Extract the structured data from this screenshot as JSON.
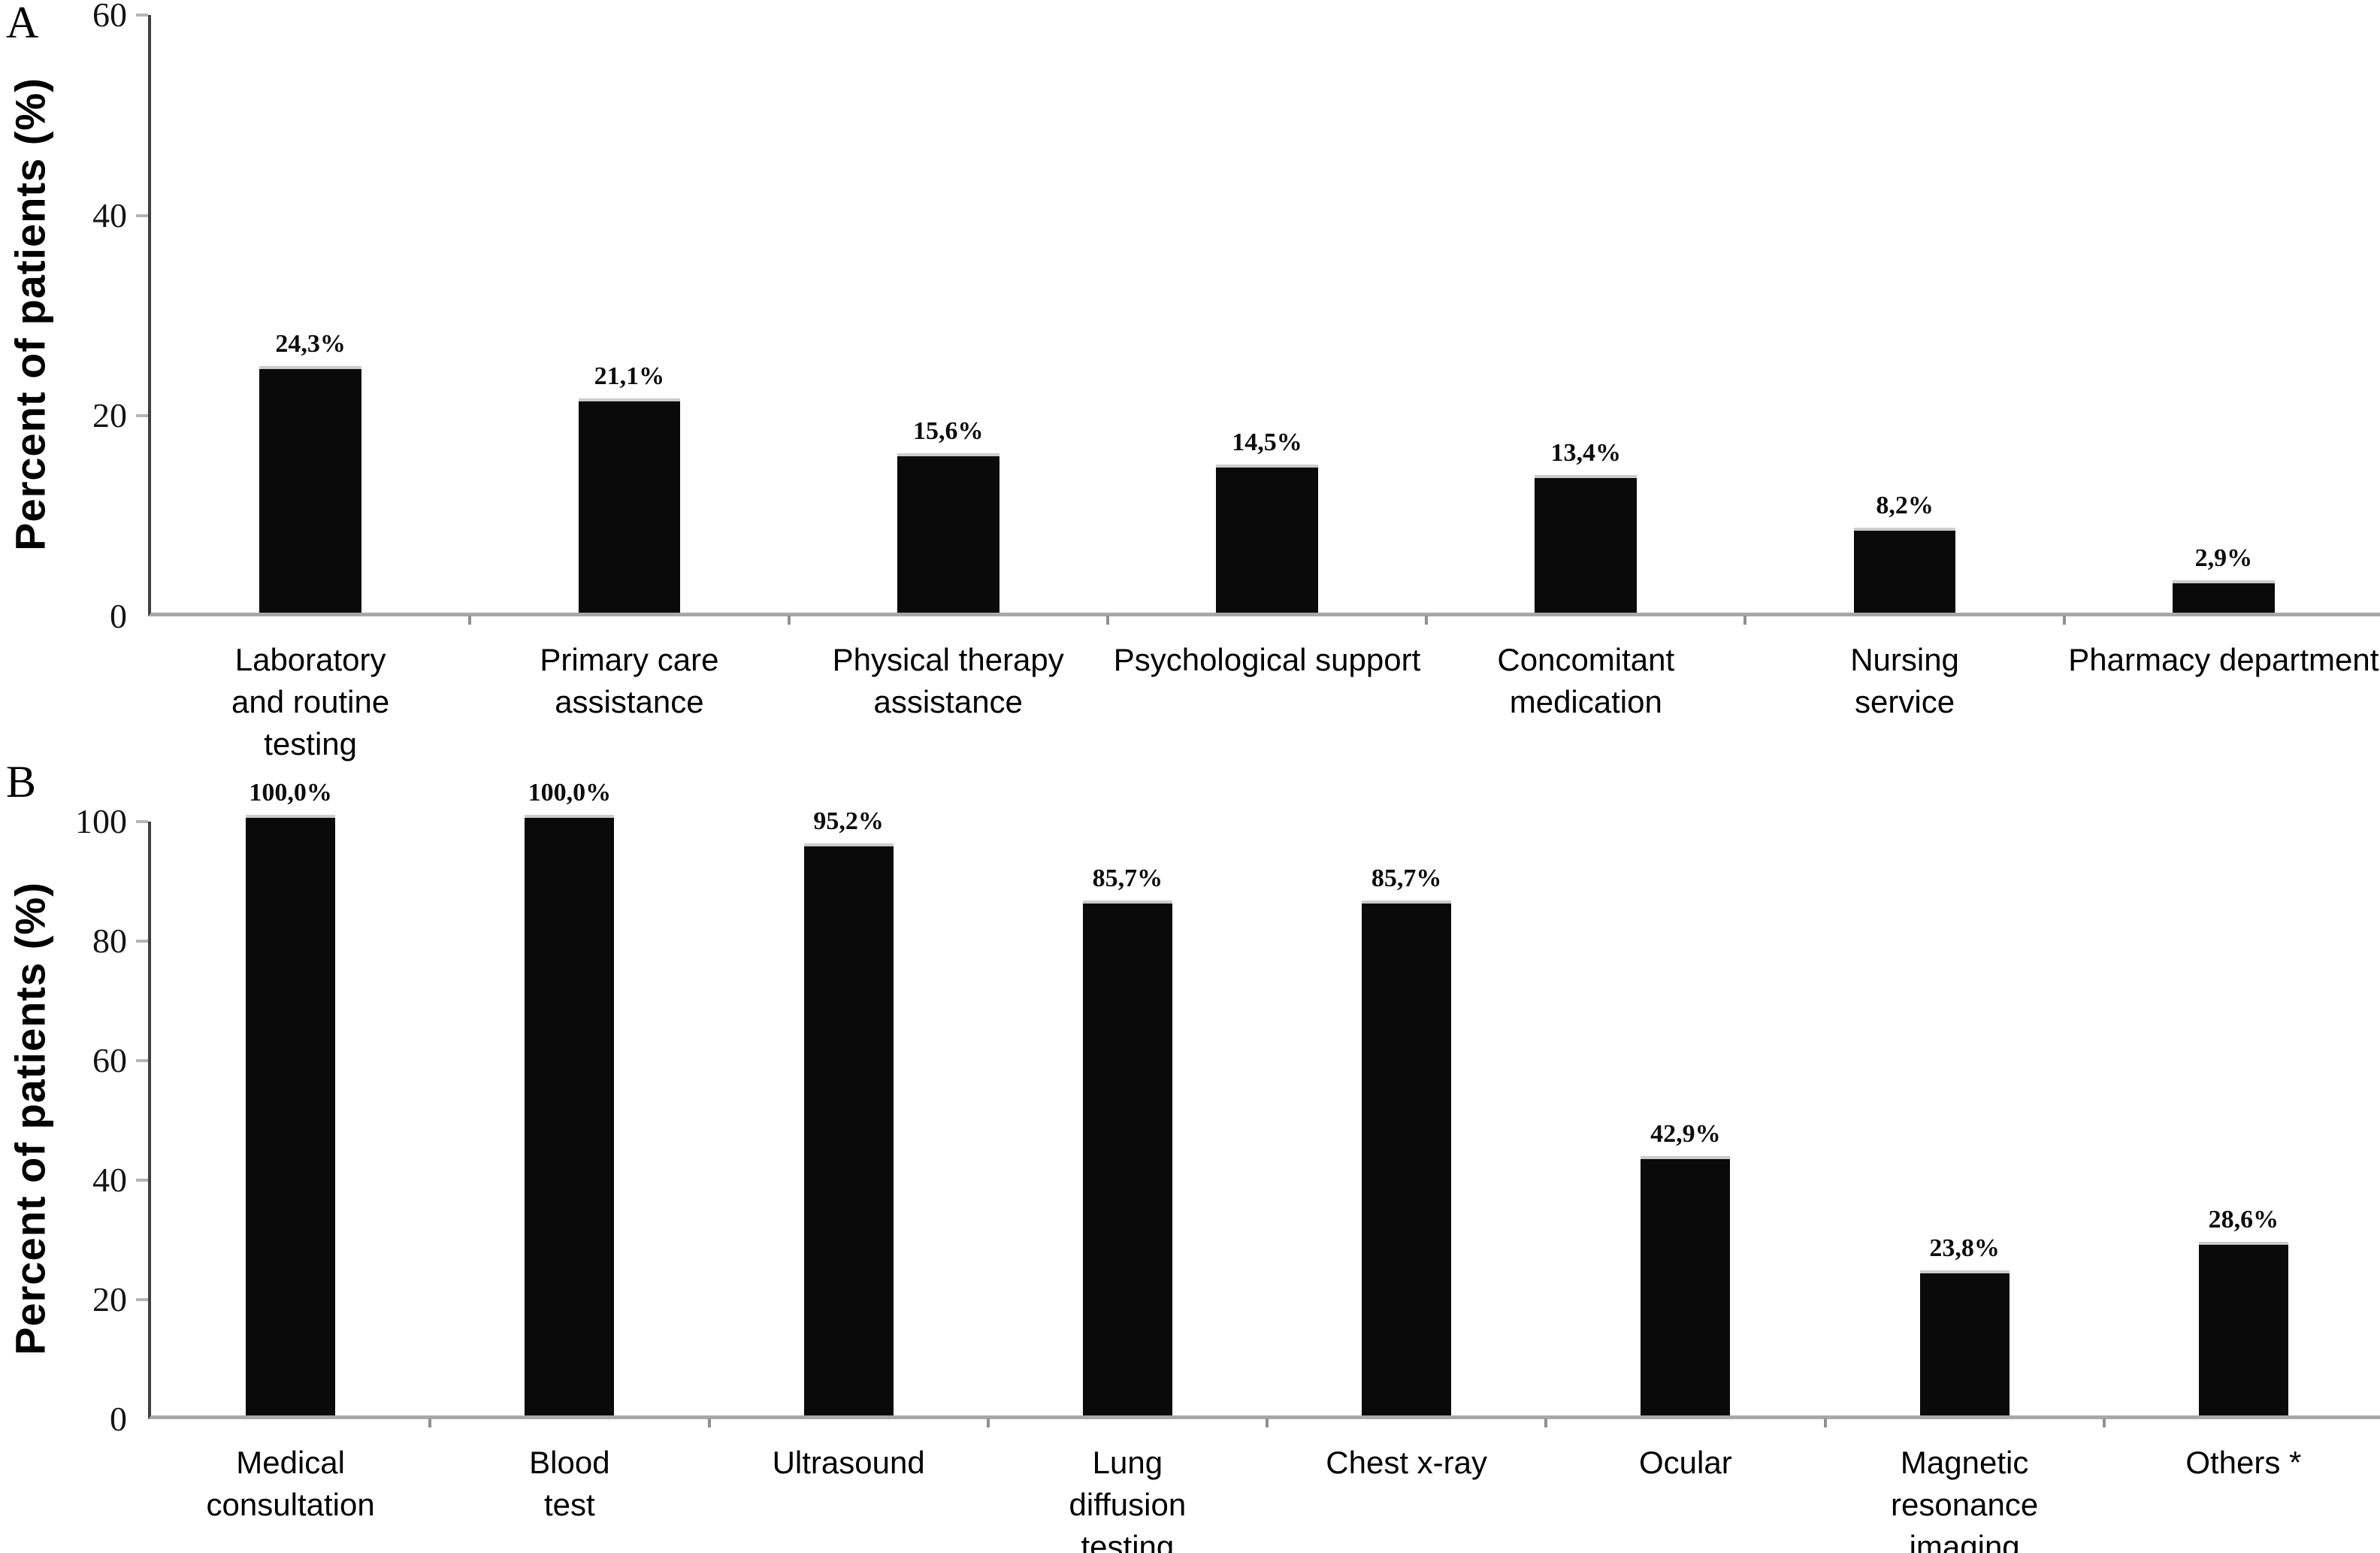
{
  "panels": [
    {
      "letter": "A",
      "y_axis": {
        "label": "Percent of patients (%)",
        "max": 60,
        "ticks": [
          0,
          20,
          40,
          60
        ]
      },
      "bars": [
        {
          "category": "Laboratory\nand routine\ntesting",
          "value": 24.3,
          "value_label": "24,3%"
        },
        {
          "category": "Primary care\nassistance",
          "value": 21.1,
          "value_label": "21,1%"
        },
        {
          "category": "Physical therapy\nassistance",
          "value": 15.6,
          "value_label": "15,6%"
        },
        {
          "category": "Psychological support",
          "value": 14.5,
          "value_label": "14,5%"
        },
        {
          "category": "Concomitant\nmedication",
          "value": 13.4,
          "value_label": "13,4%"
        },
        {
          "category": "Nursing\nservice",
          "value": 8.2,
          "value_label": "8,2%"
        },
        {
          "category": "Pharmacy department",
          "value": 2.9,
          "value_label": "2,9%"
        }
      ]
    },
    {
      "letter": "B",
      "y_axis": {
        "label": "Percent of patients (%)",
        "max": 100,
        "ticks": [
          0,
          20,
          40,
          60,
          80,
          100
        ]
      },
      "bars": [
        {
          "category": "Medical\nconsultation",
          "value": 100.0,
          "value_label": "100,0%"
        },
        {
          "category": "Blood\ntest",
          "value": 100.0,
          "value_label": "100,0%"
        },
        {
          "category": "Ultrasound",
          "value": 95.2,
          "value_label": "95,2%"
        },
        {
          "category": "Lung\ndiffusion\ntesting",
          "value": 85.7,
          "value_label": "85,7%"
        },
        {
          "category": "Chest x-ray",
          "value": 85.7,
          "value_label": "85,7%"
        },
        {
          "category": "Ocular",
          "value": 42.9,
          "value_label": "42,9%"
        },
        {
          "category": "Magnetic\nresonance\nimaging",
          "value": 23.8,
          "value_label": "23,8%"
        },
        {
          "category": "Others *",
          "value": 28.6,
          "value_label": "28,6%"
        }
      ]
    }
  ],
  "chart_data": [
    {
      "type": "bar",
      "panel": "A",
      "title": "",
      "xlabel": "",
      "ylabel": "Percent of patients (%)",
      "ylim": [
        0,
        60
      ],
      "yticks": [
        0,
        20,
        40,
        60
      ],
      "grid": false,
      "legend": null,
      "bar_color": "#0a0a0a",
      "categories": [
        "Laboratory and routine testing",
        "Primary care assistance",
        "Physical therapy assistance",
        "Psychological support",
        "Concomitant medication",
        "Nursing service",
        "Pharmacy department"
      ],
      "values": [
        24.3,
        21.1,
        15.6,
        14.5,
        13.4,
        8.2,
        2.9
      ],
      "value_labels": [
        "24,3%",
        "21,1%",
        "15,6%",
        "14,5%",
        "13,4%",
        "8,2%",
        "2,9%"
      ]
    },
    {
      "type": "bar",
      "panel": "B",
      "title": "",
      "xlabel": "",
      "ylabel": "Percent of patients (%)",
      "ylim": [
        0,
        100
      ],
      "yticks": [
        0,
        20,
        40,
        60,
        80,
        100
      ],
      "grid": false,
      "legend": null,
      "bar_color": "#0a0a0a",
      "categories": [
        "Medical consultation",
        "Blood test",
        "Ultrasound",
        "Lung diffusion testing",
        "Chest x-ray",
        "Ocular",
        "Magnetic resonance imaging",
        "Others *"
      ],
      "values": [
        100.0,
        100.0,
        95.2,
        85.7,
        85.7,
        42.9,
        23.8,
        28.6
      ],
      "value_labels": [
        "100,0%",
        "100,0%",
        "95,2%",
        "85,7%",
        "85,7%",
        "42,9%",
        "23,8%",
        "28,6%"
      ]
    }
  ],
  "colors": {
    "bar": "#0a0a0a",
    "bar_cap": "#cccccc",
    "y_axis_line": "#3f3f3f",
    "baseline": "#a8a8a8",
    "tick_mark": "#b5b5b5",
    "text": "#000000"
  }
}
